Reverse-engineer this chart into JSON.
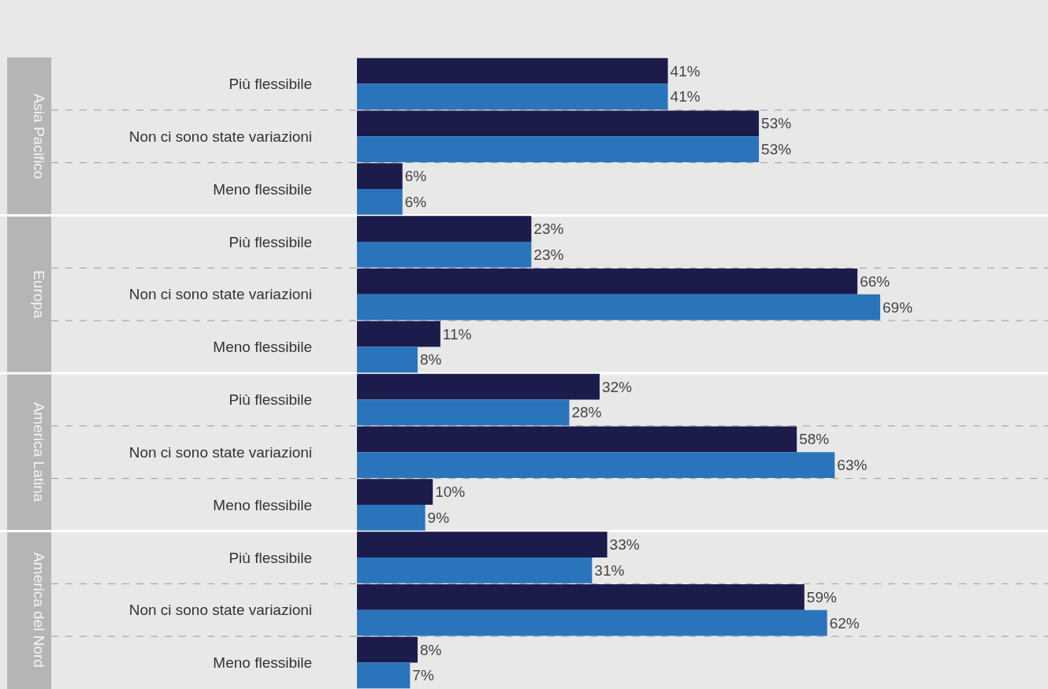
{
  "chart_data": {
    "type": "bar",
    "orientation": "horizontal",
    "grid": false,
    "categories": [
      "Più flessibile",
      "Non ci sono state variazioni",
      "Meno flessibile",
      "Più flessibile",
      "Non ci sono state variazioni",
      "Meno flessibile",
      "Più flessibile",
      "Non ci sono state variazioni",
      "Meno flessibile",
      "Più flessibile",
      "Non ci sono state variazioni",
      "Meno flessibile"
    ],
    "series": [
      {
        "color": "#1c1c4c",
        "values": [
          41,
          53,
          6,
          23,
          66,
          11,
          32,
          58,
          10,
          33,
          59,
          8
        ],
        "value_labels": [
          "41%",
          "53%",
          "6%",
          "23%",
          "66%",
          "11%",
          "32%",
          "58%",
          "10%",
          "33%",
          "59%",
          "8%"
        ]
      },
      {
        "color": "#2a74bb",
        "values": [
          41,
          53,
          6,
          23,
          69,
          8,
          28,
          63,
          9,
          31,
          62,
          7
        ],
        "value_labels": [
          "41%",
          "53%",
          "6%",
          "23%",
          "69%",
          "8%",
          "28%",
          "63%",
          "9%",
          "31%",
          "62%",
          "7%"
        ]
      }
    ],
    "annotations": [
      "Asia Pacifico",
      "Europa",
      "America Latina",
      "America del Nord"
    ]
  }
}
